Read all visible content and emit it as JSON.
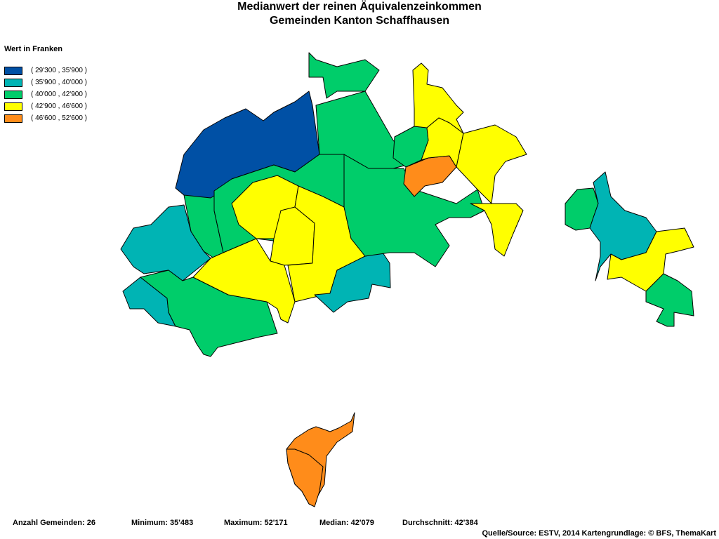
{
  "title": {
    "line1": "Medianwert der reinen Äquivalenzeinkommen",
    "line2": "Gemeinden Kanton Schaffhausen"
  },
  "legend": {
    "title": "Wert in Franken",
    "classes": [
      {
        "label": "( 29'300 , 35'900 )",
        "color": "#0050a5"
      },
      {
        "label": "( 35'900 , 40'000 )",
        "color": "#00b4b4"
      },
      {
        "label": "( 40'000 , 42'900 )",
        "color": "#00cd6a"
      },
      {
        "label": "( 42'900 , 46'600 )",
        "color": "#ffff00"
      },
      {
        "label": "( 46'600 , 52'600 )",
        "color": "#ff8c1a"
      }
    ]
  },
  "stats": {
    "count": "Anzahl Gemeinden: 26",
    "minimum": "Minimum: 35'483",
    "maximum": "Maximum: 52'171",
    "median": "Median: 42'079",
    "mean": "Durchschnitt: 42'384"
  },
  "source": "Quelle/Source: ESTV, 2014 Kartengrundlage: © BFS, ThemaKart"
}
